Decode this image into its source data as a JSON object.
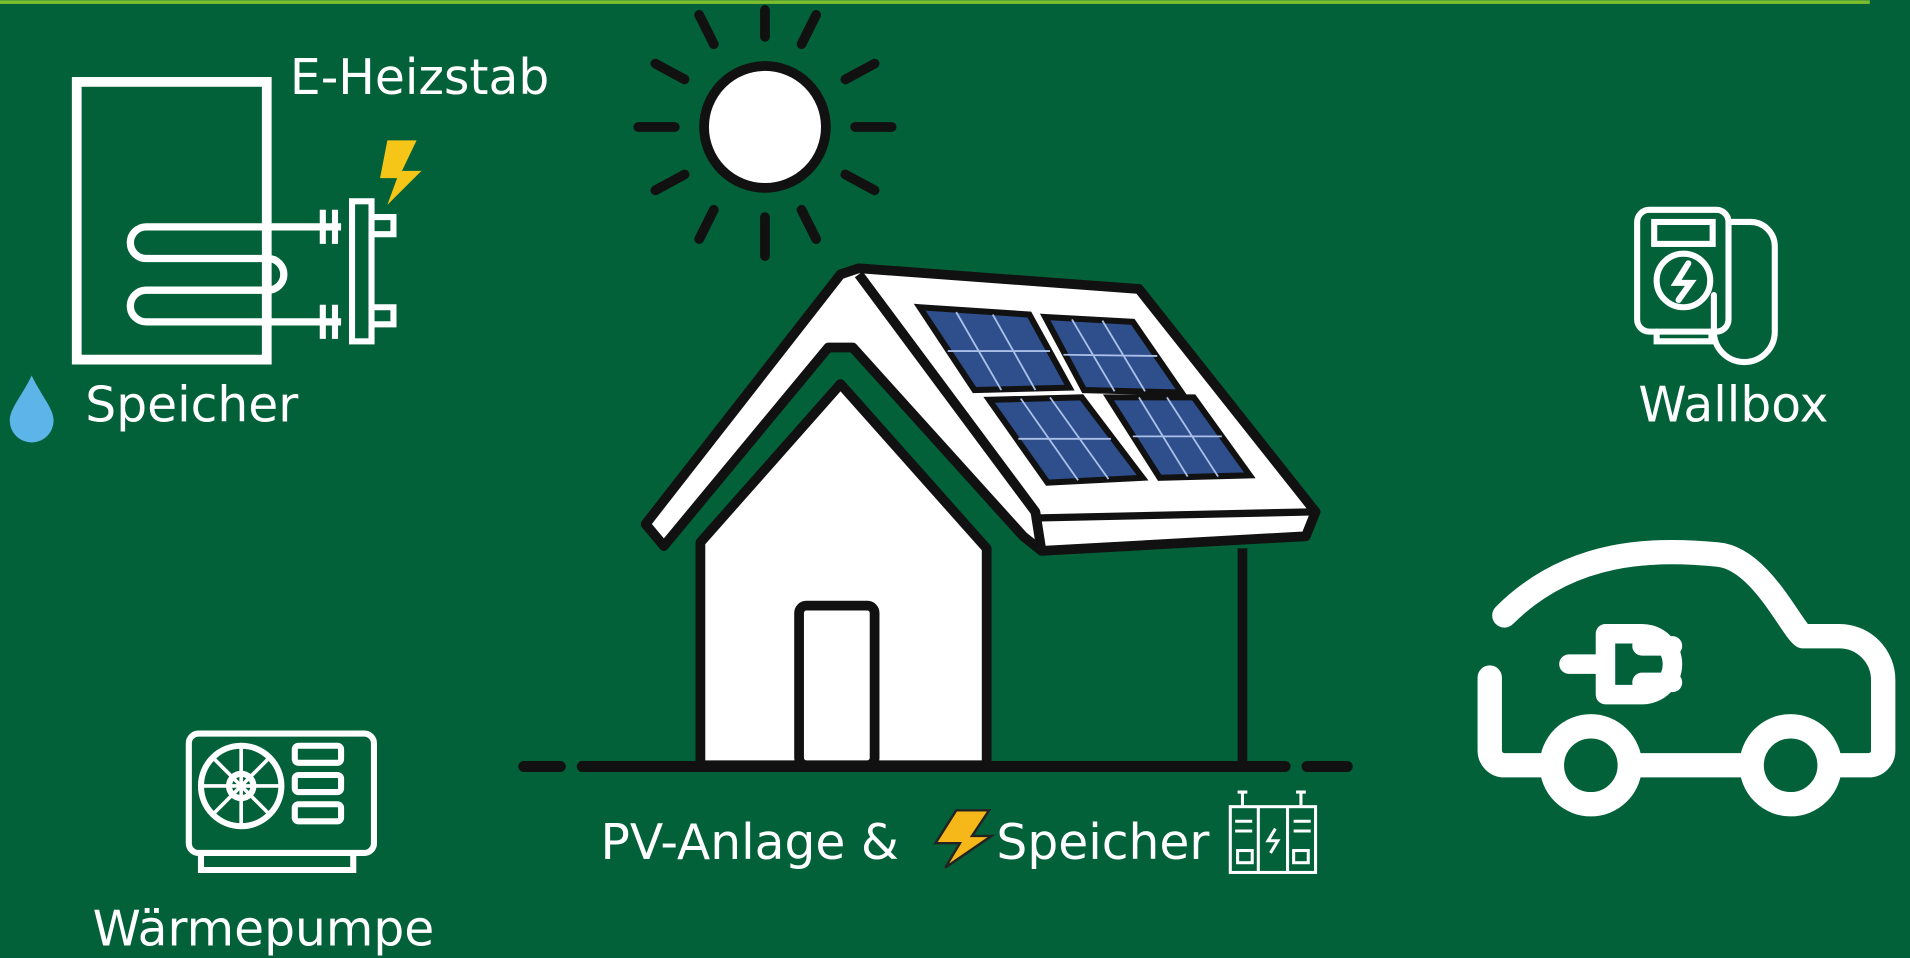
{
  "labels": {
    "heater": "E-Heizstab",
    "storage": "Speicher",
    "wallbox": "Wallbox",
    "pv": "PV-Anlage &",
    "battery": "Speicher",
    "heat_pump": "Wärmepumpe"
  }
}
